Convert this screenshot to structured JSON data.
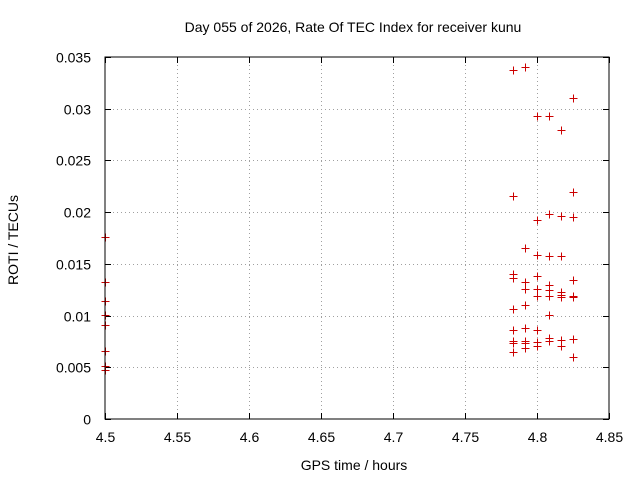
{
  "chart_data": {
    "type": "scatter",
    "title": "Day 055 of 2026, Rate Of TEC Index for receiver kunu",
    "xlabel": "GPS time / hours",
    "ylabel": "ROTI / TECUs",
    "xlim": [
      4.5,
      4.85
    ],
    "ylim": [
      0,
      0.035
    ],
    "xticks": [
      4.5,
      4.55,
      4.6,
      4.65,
      4.7,
      4.75,
      4.8,
      4.85
    ],
    "xtick_labels": [
      "4.5",
      "4.55",
      "4.6",
      "4.65",
      "4.7",
      "4.75",
      "4.8",
      "4.85"
    ],
    "yticks": [
      0,
      0.005,
      0.01,
      0.015,
      0.02,
      0.025,
      0.03,
      0.035
    ],
    "ytick_labels": [
      "0",
      "0.005",
      "0.01",
      "0.015",
      "0.02",
      "0.025",
      "0.03",
      "0.035"
    ],
    "grid": true,
    "marker": "+",
    "color": "#cc0000",
    "series": [
      {
        "name": "ROTI",
        "points": [
          [
            4.5,
            0.0176
          ],
          [
            4.5,
            0.0132
          ],
          [
            4.5,
            0.0114
          ],
          [
            4.5,
            0.0101
          ],
          [
            4.5,
            0.0091
          ],
          [
            4.5,
            0.0066
          ],
          [
            4.5,
            0.0051
          ],
          [
            4.5,
            0.0047
          ],
          [
            4.7833,
            0.0337
          ],
          [
            4.7833,
            0.0216
          ],
          [
            4.7833,
            0.014
          ],
          [
            4.7833,
            0.0136
          ],
          [
            4.7833,
            0.0106
          ],
          [
            4.7833,
            0.0086
          ],
          [
            4.7833,
            0.0075
          ],
          [
            4.7833,
            0.0073
          ],
          [
            4.7833,
            0.0065
          ],
          [
            4.7917,
            0.034
          ],
          [
            4.7917,
            0.0165
          ],
          [
            4.7917,
            0.0132
          ],
          [
            4.7917,
            0.0126
          ],
          [
            4.7917,
            0.011
          ],
          [
            4.7917,
            0.0088
          ],
          [
            4.7917,
            0.0075
          ],
          [
            4.7917,
            0.0073
          ],
          [
            4.7917,
            0.0069
          ],
          [
            4.8,
            0.0293
          ],
          [
            4.8,
            0.0192
          ],
          [
            4.8,
            0.0159
          ],
          [
            4.8,
            0.0138
          ],
          [
            4.8,
            0.0126
          ],
          [
            4.8,
            0.0119
          ],
          [
            4.8,
            0.0086
          ],
          [
            4.8,
            0.0074
          ],
          [
            4.8,
            0.0071
          ],
          [
            4.8083,
            0.0293
          ],
          [
            4.8083,
            0.0198
          ],
          [
            4.8083,
            0.0158
          ],
          [
            4.8083,
            0.013
          ],
          [
            4.8083,
            0.0125
          ],
          [
            4.8083,
            0.0119
          ],
          [
            4.8083,
            0.0101
          ],
          [
            4.8083,
            0.0078
          ],
          [
            4.8083,
            0.0075
          ],
          [
            4.8167,
            0.0279
          ],
          [
            4.8167,
            0.0196
          ],
          [
            4.8167,
            0.0158
          ],
          [
            4.8167,
            0.0123
          ],
          [
            4.8167,
            0.012
          ],
          [
            4.8167,
            0.0118
          ],
          [
            4.8167,
            0.0076
          ],
          [
            4.8167,
            0.0071
          ],
          [
            4.825,
            0.031
          ],
          [
            4.825,
            0.0219
          ],
          [
            4.825,
            0.0195
          ],
          [
            4.825,
            0.0134
          ],
          [
            4.825,
            0.0119
          ],
          [
            4.825,
            0.0118
          ],
          [
            4.825,
            0.0077
          ],
          [
            4.825,
            0.006
          ]
        ]
      }
    ]
  }
}
